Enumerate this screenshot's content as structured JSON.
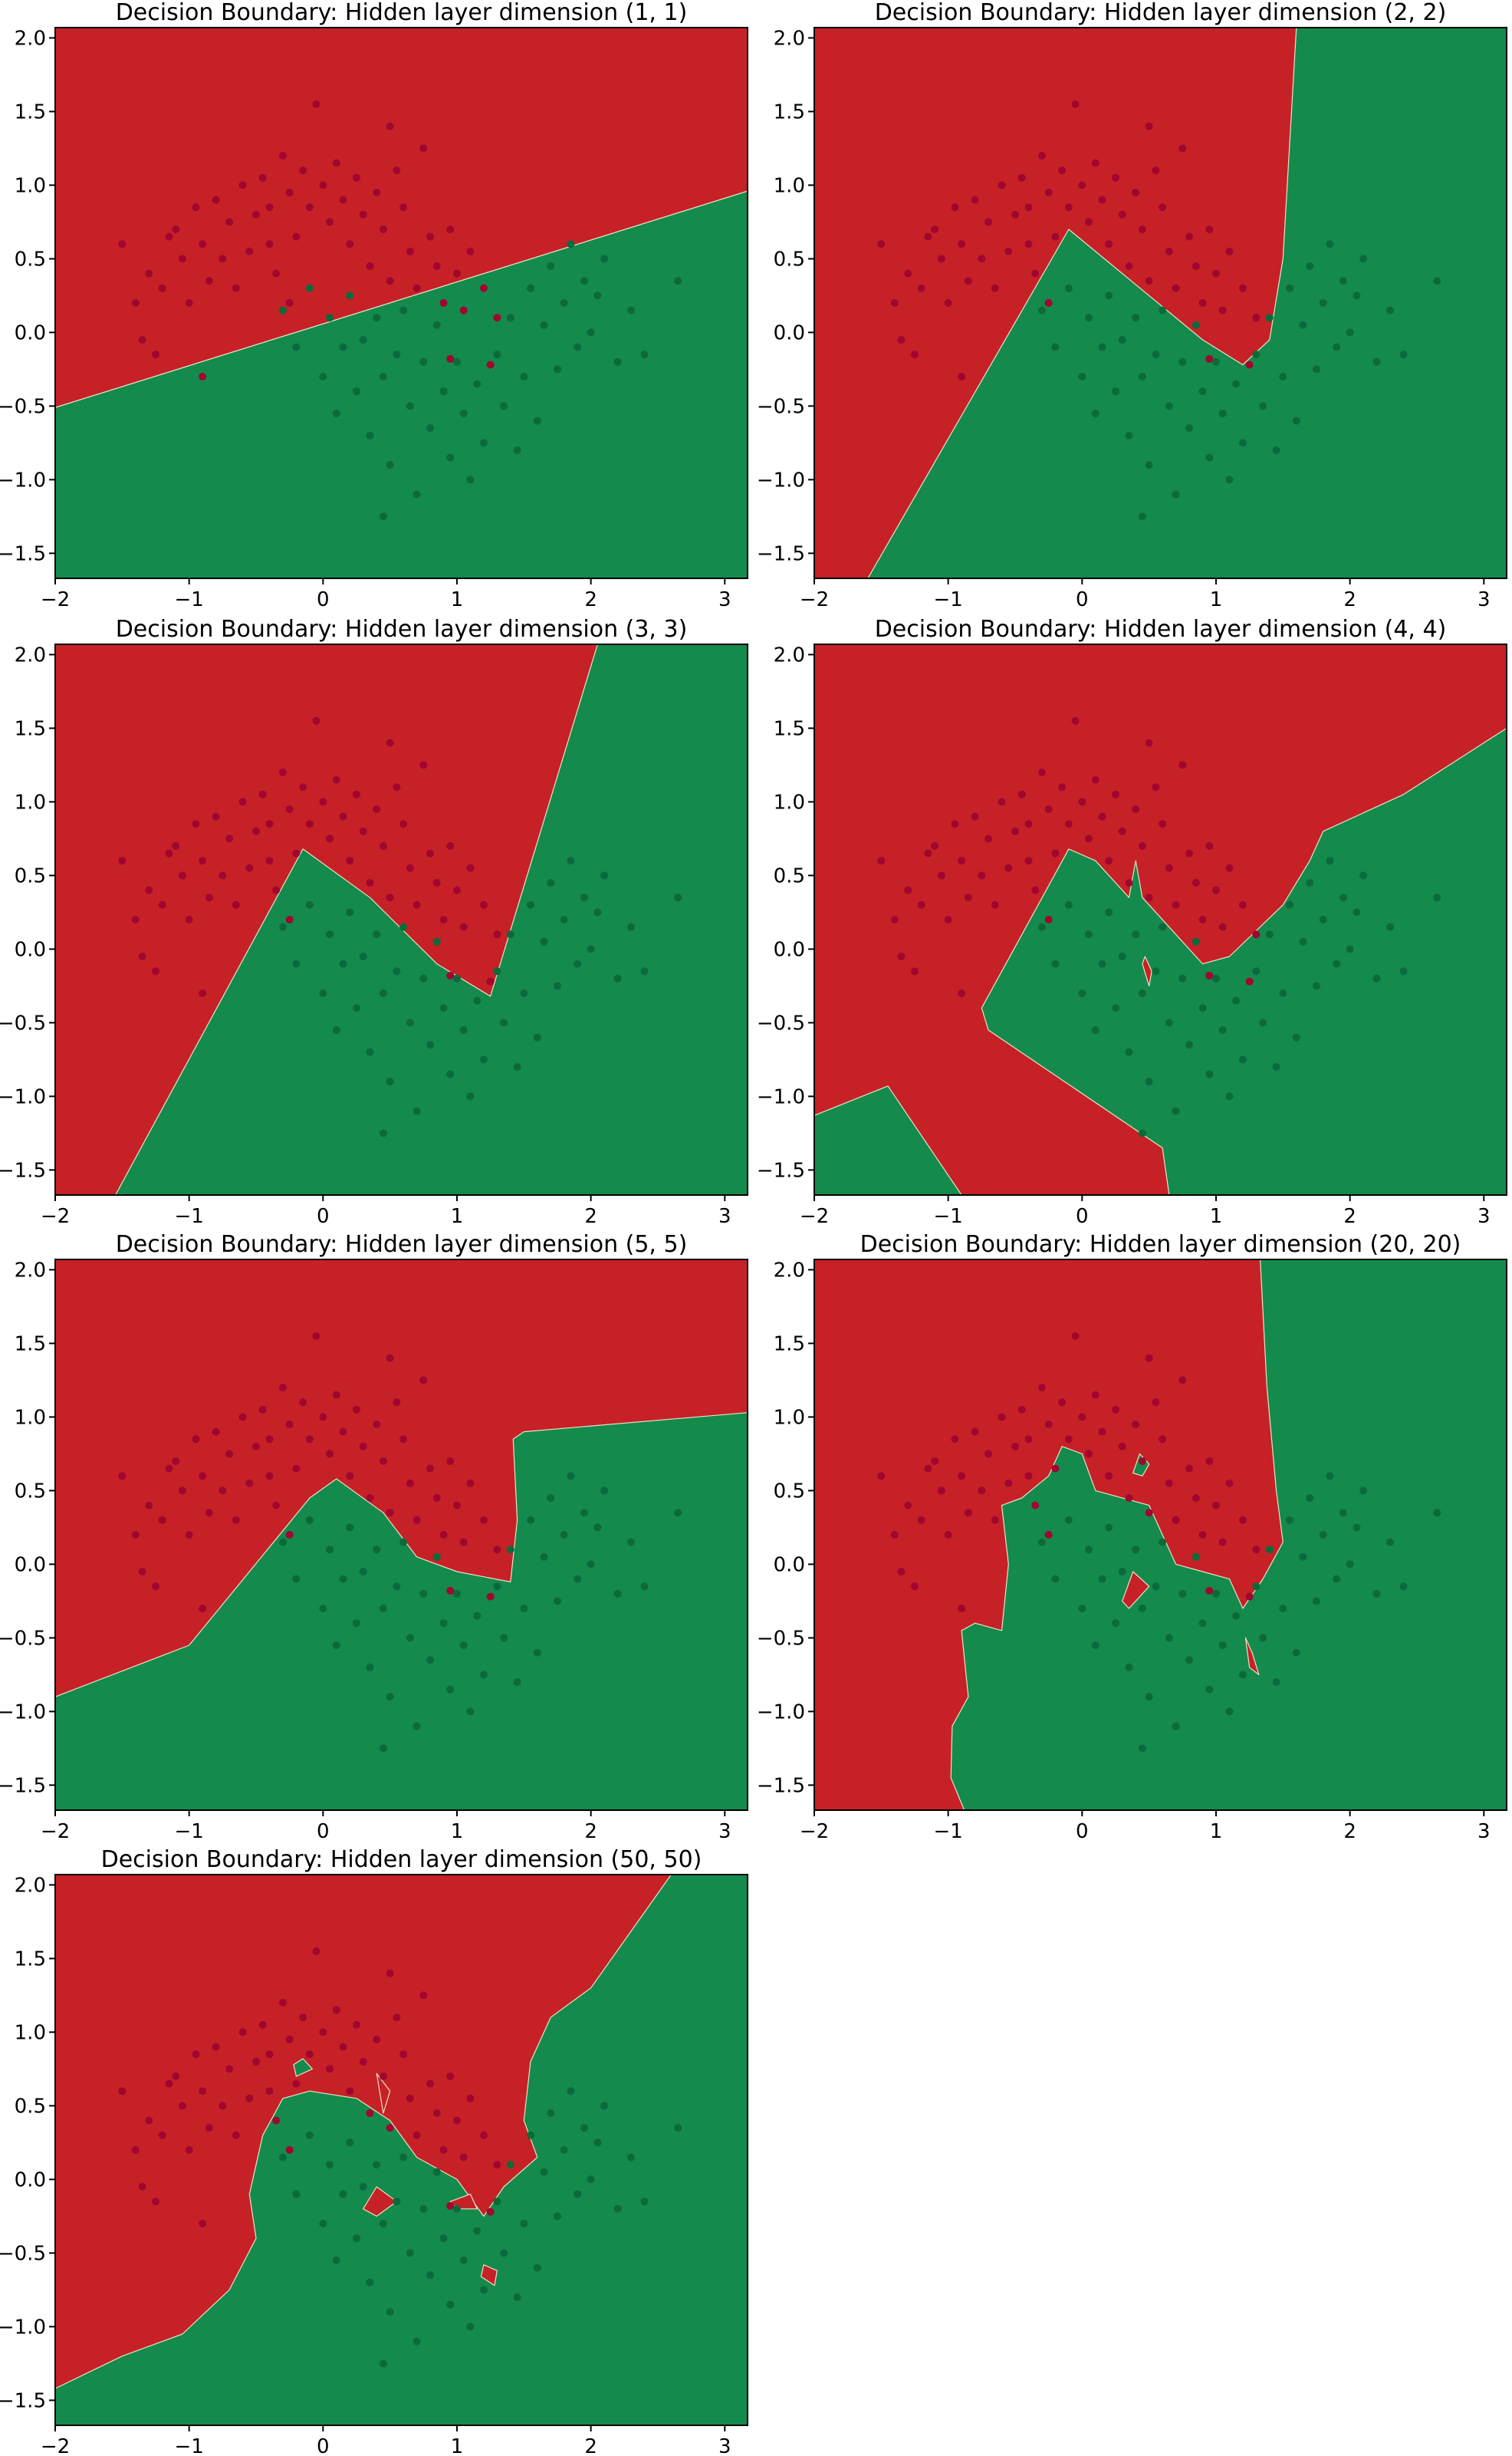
{
  "figure": {
    "colors": {
      "red_region": "#c62127",
      "green_region": "#148a4c",
      "red_point": "#a0062e",
      "green_point": "#0b6a3a"
    },
    "x_ticks": [
      -2,
      -1,
      0,
      1,
      2,
      3
    ],
    "y_ticks": [
      -1.5,
      -1.0,
      -0.5,
      0.0,
      0.5,
      1.0,
      1.5,
      2.0
    ],
    "x_tick_labels": [
      "−2",
      "−1",
      "0",
      "1",
      "2",
      "3"
    ],
    "y_tick_labels": [
      "−1.5",
      "−1.0",
      "−0.5",
      "0.0",
      "0.5",
      "1.0",
      "1.5",
      "2.0"
    ],
    "xlim": [
      -2.0,
      3.17
    ],
    "ylim": [
      -1.67,
      2.07
    ]
  },
  "chart_data": [
    {
      "type": "scatter",
      "title": "Decision Boundary: Hidden layer dimension (1, 1)",
      "xlabel": "",
      "ylabel": "",
      "xlim": [
        -2.0,
        3.17
      ],
      "ylim": [
        -1.67,
        2.07
      ],
      "grid": false,
      "regions": [
        {
          "class": "green",
          "polygon": [
            [
              -2.0,
              -1.67
            ],
            [
              3.17,
              -1.67
            ],
            [
              3.17,
              0.96
            ],
            [
              -2.0,
              -0.51
            ]
          ]
        },
        {
          "class": "red",
          "polygon": [
            [
              -2.0,
              -0.51
            ],
            [
              3.17,
              0.96
            ],
            [
              3.17,
              2.07
            ],
            [
              -2.0,
              2.07
            ]
          ]
        }
      ]
    },
    {
      "type": "scatter",
      "title": "Decision Boundary: Hidden layer dimension (2, 2)",
      "xlabel": "",
      "ylabel": "",
      "xlim": [
        -2.0,
        3.17
      ],
      "ylim": [
        -1.67,
        2.07
      ],
      "grid": false,
      "regions": [
        {
          "class": "green",
          "polygon": [
            [
              -1.6,
              -1.67
            ],
            [
              -0.1,
              0.7
            ],
            [
              0.9,
              -0.05
            ],
            [
              1.2,
              -0.22
            ],
            [
              1.4,
              -0.05
            ],
            [
              1.5,
              0.5
            ],
            [
              1.6,
              2.07
            ],
            [
              3.17,
              2.07
            ],
            [
              3.17,
              -1.67
            ]
          ]
        }
      ]
    },
    {
      "type": "scatter",
      "title": "Decision Boundary: Hidden layer dimension (3, 3)",
      "xlabel": "",
      "ylabel": "",
      "xlim": [
        -2.0,
        3.17
      ],
      "ylim": [
        -1.67,
        2.07
      ],
      "grid": false,
      "regions": [
        {
          "class": "green",
          "polygon": [
            [
              -1.55,
              -1.67
            ],
            [
              -0.15,
              0.68
            ],
            [
              0.35,
              0.35
            ],
            [
              0.85,
              -0.1
            ],
            [
              1.25,
              -0.32
            ],
            [
              2.05,
              2.07
            ],
            [
              3.17,
              2.07
            ],
            [
              3.17,
              -1.67
            ]
          ]
        }
      ]
    },
    {
      "type": "scatter",
      "title": "Decision Boundary: Hidden layer dimension (4, 4)",
      "xlabel": "",
      "ylabel": "",
      "xlim": [
        -2.0,
        3.17
      ],
      "ylim": [
        -1.67,
        2.07
      ],
      "grid": false,
      "regions": [
        {
          "class": "green",
          "polygon": [
            [
              -2.0,
              -1.67
            ],
            [
              -2.0,
              -1.13
            ],
            [
              -1.45,
              -0.93
            ],
            [
              -0.9,
              -1.67
            ]
          ]
        },
        {
          "class": "green",
          "polygon": [
            [
              0.65,
              -1.67
            ],
            [
              0.6,
              -1.35
            ],
            [
              -0.7,
              -0.55
            ],
            [
              -0.75,
              -0.4
            ],
            [
              -0.1,
              0.68
            ],
            [
              0.1,
              0.6
            ],
            [
              0.35,
              0.35
            ],
            [
              0.4,
              0.6
            ],
            [
              0.45,
              0.35
            ],
            [
              0.9,
              -0.1
            ],
            [
              1.1,
              -0.05
            ],
            [
              1.5,
              0.3
            ],
            [
              1.7,
              0.6
            ],
            [
              1.8,
              0.8
            ],
            [
              2.4,
              1.05
            ],
            [
              3.17,
              1.5
            ],
            [
              3.17,
              -1.67
            ]
          ]
        },
        {
          "class": "red",
          "polygon": [
            [
              0.47,
              -0.05
            ],
            [
              0.52,
              -0.15
            ],
            [
              0.5,
              -0.25
            ],
            [
              0.45,
              -0.1
            ]
          ]
        }
      ]
    },
    {
      "type": "scatter",
      "title": "Decision Boundary: Hidden layer dimension (5, 5)",
      "xlabel": "",
      "ylabel": "",
      "xlim": [
        -2.0,
        3.17
      ],
      "ylim": [
        -1.67,
        2.07
      ],
      "grid": false,
      "regions": [
        {
          "class": "green",
          "polygon": [
            [
              -2.0,
              -1.67
            ],
            [
              -2.0,
              -0.9
            ],
            [
              -1.0,
              -0.55
            ],
            [
              -0.1,
              0.45
            ],
            [
              0.1,
              0.58
            ],
            [
              0.45,
              0.35
            ],
            [
              0.7,
              0.05
            ],
            [
              1.0,
              -0.05
            ],
            [
              1.4,
              -0.12
            ],
            [
              1.45,
              0.3
            ],
            [
              1.42,
              0.85
            ],
            [
              1.5,
              0.9
            ],
            [
              3.17,
              1.03
            ],
            [
              3.17,
              -1.67
            ]
          ]
        }
      ]
    },
    {
      "type": "scatter",
      "title": "Decision Boundary: Hidden layer dimension (20, 20)",
      "xlabel": "",
      "ylabel": "",
      "xlim": [
        -2.0,
        3.17
      ],
      "ylim": [
        -1.67,
        2.07
      ],
      "grid": false,
      "regions": [
        {
          "class": "green",
          "polygon": [
            [
              -0.88,
              -1.67
            ],
            [
              -0.98,
              -1.45
            ],
            [
              -0.97,
              -1.1
            ],
            [
              -0.85,
              -0.9
            ],
            [
              -0.9,
              -0.45
            ],
            [
              -0.8,
              -0.4
            ],
            [
              -0.6,
              -0.45
            ],
            [
              -0.55,
              0.0
            ],
            [
              -0.6,
              0.4
            ],
            [
              -0.45,
              0.45
            ],
            [
              -0.25,
              0.6
            ],
            [
              -0.15,
              0.8
            ],
            [
              0.0,
              0.75
            ],
            [
              0.1,
              0.5
            ],
            [
              0.5,
              0.4
            ],
            [
              0.6,
              0.2
            ],
            [
              0.7,
              0.0
            ],
            [
              0.9,
              -0.05
            ],
            [
              1.1,
              -0.1
            ],
            [
              1.2,
              -0.3
            ],
            [
              1.35,
              -0.1
            ],
            [
              1.5,
              0.15
            ],
            [
              1.45,
              0.5
            ],
            [
              1.38,
              1.2
            ],
            [
              1.33,
              2.07
            ],
            [
              3.17,
              2.07
            ],
            [
              3.17,
              -1.67
            ]
          ]
        },
        {
          "class": "green",
          "polygon": [
            [
              0.38,
              0.62
            ],
            [
              0.43,
              0.75
            ],
            [
              0.5,
              0.68
            ],
            [
              0.45,
              0.6
            ]
          ]
        },
        {
          "class": "red",
          "polygon": [
            [
              0.3,
              -0.25
            ],
            [
              0.38,
              -0.05
            ],
            [
              0.5,
              -0.15
            ],
            [
              0.35,
              -0.3
            ]
          ]
        },
        {
          "class": "red",
          "polygon": [
            [
              1.22,
              -0.5
            ],
            [
              1.27,
              -0.6
            ],
            [
              1.32,
              -0.75
            ],
            [
              1.25,
              -0.7
            ]
          ]
        }
      ]
    },
    {
      "type": "scatter",
      "title": "Decision Boundary: Hidden layer dimension (50, 50)",
      "xlabel": "",
      "ylabel": "",
      "xlim": [
        -2.0,
        3.17
      ],
      "ylim": [
        -1.67,
        2.07
      ],
      "grid": false,
      "regions": [
        {
          "class": "green",
          "polygon": [
            [
              -2.0,
              -1.67
            ],
            [
              -2.0,
              -1.42
            ],
            [
              -1.5,
              -1.2
            ],
            [
              -1.05,
              -1.05
            ],
            [
              -0.7,
              -0.75
            ],
            [
              -0.5,
              -0.4
            ],
            [
              -0.55,
              -0.1
            ],
            [
              -0.45,
              0.3
            ],
            [
              -0.3,
              0.55
            ],
            [
              -0.1,
              0.6
            ],
            [
              0.25,
              0.55
            ],
            [
              0.5,
              0.4
            ],
            [
              0.7,
              0.15
            ],
            [
              1.0,
              0.0
            ],
            [
              1.2,
              -0.25
            ],
            [
              1.35,
              -0.05
            ],
            [
              1.6,
              0.15
            ],
            [
              1.5,
              0.4
            ],
            [
              1.55,
              0.8
            ],
            [
              1.7,
              1.1
            ],
            [
              2.0,
              1.3
            ],
            [
              2.6,
              2.07
            ],
            [
              3.17,
              2.07
            ],
            [
              3.17,
              -1.67
            ]
          ]
        },
        {
          "class": "green",
          "polygon": [
            [
              -0.22,
              0.78
            ],
            [
              -0.15,
              0.82
            ],
            [
              -0.08,
              0.75
            ],
            [
              -0.2,
              0.7
            ]
          ]
        },
        {
          "class": "red",
          "polygon": [
            [
              0.4,
              0.72
            ],
            [
              0.45,
              0.45
            ],
            [
              0.5,
              0.6
            ]
          ]
        },
        {
          "class": "red",
          "polygon": [
            [
              0.3,
              -0.2
            ],
            [
              0.4,
              -0.05
            ],
            [
              0.55,
              -0.15
            ],
            [
              0.4,
              -0.25
            ]
          ]
        },
        {
          "class": "red",
          "polygon": [
            [
              1.2,
              -0.58
            ],
            [
              1.3,
              -0.62
            ],
            [
              1.28,
              -0.72
            ],
            [
              1.18,
              -0.66
            ]
          ]
        },
        {
          "class": "red",
          "polygon": [
            [
              0.95,
              -0.15
            ],
            [
              1.1,
              -0.1
            ],
            [
              1.15,
              -0.2
            ],
            [
              1.0,
              -0.2
            ]
          ]
        }
      ]
    }
  ],
  "points": {
    "red": [
      [
        -1.5,
        0.6
      ],
      [
        -1.4,
        0.2
      ],
      [
        -1.35,
        -0.05
      ],
      [
        -1.3,
        0.4
      ],
      [
        -1.25,
        -0.15
      ],
      [
        -1.2,
        0.3
      ],
      [
        -1.15,
        0.65
      ],
      [
        -1.1,
        0.7
      ],
      [
        -1.05,
        0.5
      ],
      [
        -1.0,
        0.2
      ],
      [
        -0.95,
        0.85
      ],
      [
        -0.9,
        0.6
      ],
      [
        -0.85,
        0.35
      ],
      [
        -0.8,
        0.9
      ],
      [
        -0.75,
        0.5
      ],
      [
        -0.7,
        0.75
      ],
      [
        -0.65,
        0.3
      ],
      [
        -0.6,
        1.0
      ],
      [
        -0.55,
        0.55
      ],
      [
        -0.5,
        0.8
      ],
      [
        -0.45,
        1.05
      ],
      [
        -0.4,
        0.85
      ],
      [
        -0.35,
        0.4
      ],
      [
        -0.3,
        1.2
      ],
      [
        -0.25,
        0.95
      ],
      [
        -0.2,
        0.65
      ],
      [
        -0.15,
        1.1
      ],
      [
        -0.1,
        0.85
      ],
      [
        -0.05,
        1.55
      ],
      [
        0.0,
        1.0
      ],
      [
        0.05,
        0.75
      ],
      [
        0.1,
        1.15
      ],
      [
        0.15,
        0.9
      ],
      [
        0.2,
        0.6
      ],
      [
        0.25,
        1.05
      ],
      [
        0.3,
        0.8
      ],
      [
        0.35,
        0.45
      ],
      [
        0.4,
        0.95
      ],
      [
        0.45,
        0.7
      ],
      [
        0.5,
        0.35
      ],
      [
        0.55,
        1.1
      ],
      [
        0.6,
        0.85
      ],
      [
        0.65,
        0.55
      ],
      [
        0.7,
        0.3
      ],
      [
        0.75,
        1.25
      ],
      [
        0.8,
        0.65
      ],
      [
        0.85,
        0.45
      ],
      [
        0.9,
        0.2
      ],
      [
        0.95,
        0.7
      ],
      [
        1.0,
        0.4
      ],
      [
        1.05,
        0.15
      ],
      [
        1.1,
        0.55
      ],
      [
        1.2,
        0.3
      ],
      [
        1.3,
        0.1
      ],
      [
        -0.25,
        0.2
      ],
      [
        -0.9,
        -0.3
      ],
      [
        0.5,
        1.4
      ],
      [
        -0.4,
        0.6
      ],
      [
        1.25,
        -0.22
      ],
      [
        0.95,
        -0.18
      ]
    ],
    "green": [
      [
        -0.3,
        0.15
      ],
      [
        -0.2,
        -0.1
      ],
      [
        -0.1,
        0.3
      ],
      [
        0.0,
        -0.3
      ],
      [
        0.05,
        0.1
      ],
      [
        0.1,
        -0.55
      ],
      [
        0.15,
        -0.1
      ],
      [
        0.2,
        0.25
      ],
      [
        0.25,
        -0.4
      ],
      [
        0.3,
        -0.05
      ],
      [
        0.35,
        -0.7
      ],
      [
        0.4,
        0.1
      ],
      [
        0.45,
        -0.3
      ],
      [
        0.5,
        -0.9
      ],
      [
        0.55,
        -0.15
      ],
      [
        0.6,
        0.15
      ],
      [
        0.65,
        -0.5
      ],
      [
        0.7,
        -1.1
      ],
      [
        0.75,
        -0.2
      ],
      [
        0.8,
        -0.65
      ],
      [
        0.85,
        0.05
      ],
      [
        0.9,
        -0.4
      ],
      [
        0.95,
        -0.85
      ],
      [
        1.0,
        -0.2
      ],
      [
        1.05,
        -0.55
      ],
      [
        1.1,
        -1.0
      ],
      [
        1.15,
        -0.35
      ],
      [
        1.2,
        -0.75
      ],
      [
        1.3,
        -0.15
      ],
      [
        1.35,
        -0.5
      ],
      [
        1.4,
        0.1
      ],
      [
        1.45,
        -0.8
      ],
      [
        1.5,
        -0.3
      ],
      [
        1.55,
        0.3
      ],
      [
        1.6,
        -0.6
      ],
      [
        1.65,
        0.05
      ],
      [
        1.7,
        0.45
      ],
      [
        1.75,
        -0.25
      ],
      [
        1.8,
        0.2
      ],
      [
        1.85,
        0.6
      ],
      [
        1.9,
        -0.1
      ],
      [
        1.95,
        0.35
      ],
      [
        2.0,
        0.0
      ],
      [
        2.05,
        0.25
      ],
      [
        2.1,
        0.5
      ],
      [
        2.2,
        -0.2
      ],
      [
        2.3,
        0.15
      ],
      [
        2.4,
        -0.15
      ],
      [
        2.65,
        0.35
      ],
      [
        0.45,
        -1.25
      ]
    ]
  }
}
